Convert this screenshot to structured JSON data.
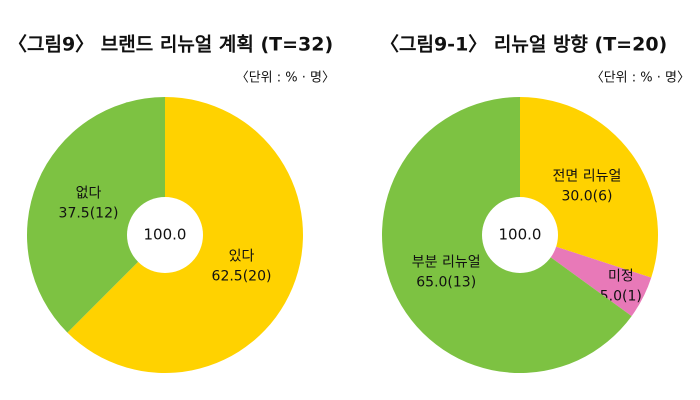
{
  "chart_data": [
    {
      "type": "pie",
      "title": "〈그림9〉 브랜드 리뉴얼 계획 (T=32)",
      "unit_note": "〈단위 : % · 명〉",
      "center_label": "100.0",
      "categories": [
        "있다",
        "없다"
      ],
      "values": [
        62.5,
        37.5
      ],
      "value_labels": [
        "62.5(20)",
        "37.5(12)"
      ],
      "colors": [
        "#FFD200",
        "#7DC242"
      ]
    },
    {
      "type": "pie",
      "title": "〈그림9-1〉 리뉴얼 방향 (T=20)",
      "unit_note": "〈단위 : % · 명〉",
      "center_label": "100.0",
      "categories": [
        "전면 리뉴얼",
        "미정",
        "부분 리뉴얼"
      ],
      "values": [
        30.0,
        5.0,
        65.0
      ],
      "value_labels": [
        "30.0(6)",
        "5.0(1)",
        "65.0(13)"
      ],
      "colors": [
        "#FFD200",
        "#E879B8",
        "#7DC242"
      ]
    }
  ]
}
